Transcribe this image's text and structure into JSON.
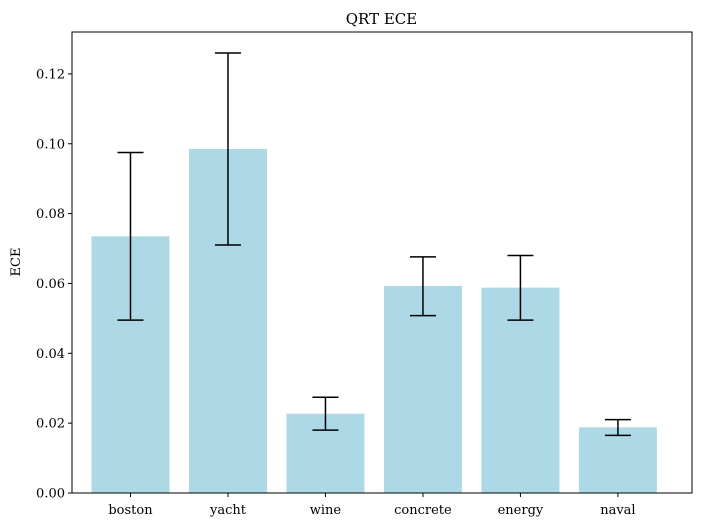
{
  "chart_data": {
    "type": "bar",
    "title": "QRT ECE",
    "xlabel": "",
    "ylabel": "ECE",
    "categories": [
      "boston",
      "yacht",
      "wine",
      "concrete",
      "energy",
      "naval"
    ],
    "values": [
      0.0735,
      0.0985,
      0.0227,
      0.0593,
      0.0588,
      0.0188
    ],
    "error_lower": [
      0.0495,
      0.071,
      0.018,
      0.0508,
      0.0495,
      0.0165
    ],
    "error_upper": [
      0.0975,
      0.126,
      0.0274,
      0.0676,
      0.068,
      0.021
    ],
    "ylim": [
      0,
      0.132
    ],
    "yticks": [
      0.0,
      0.02,
      0.04,
      0.06,
      0.08,
      0.1,
      0.12
    ],
    "ytick_labels": [
      "0.00",
      "0.02",
      "0.04",
      "0.06",
      "0.08",
      "0.10",
      "0.12"
    ],
    "grid": false,
    "legend": "none",
    "colors": {
      "bar": "#add8e6",
      "error_bar": "#000000",
      "axes": "#000000",
      "background": "#ffffff"
    }
  }
}
